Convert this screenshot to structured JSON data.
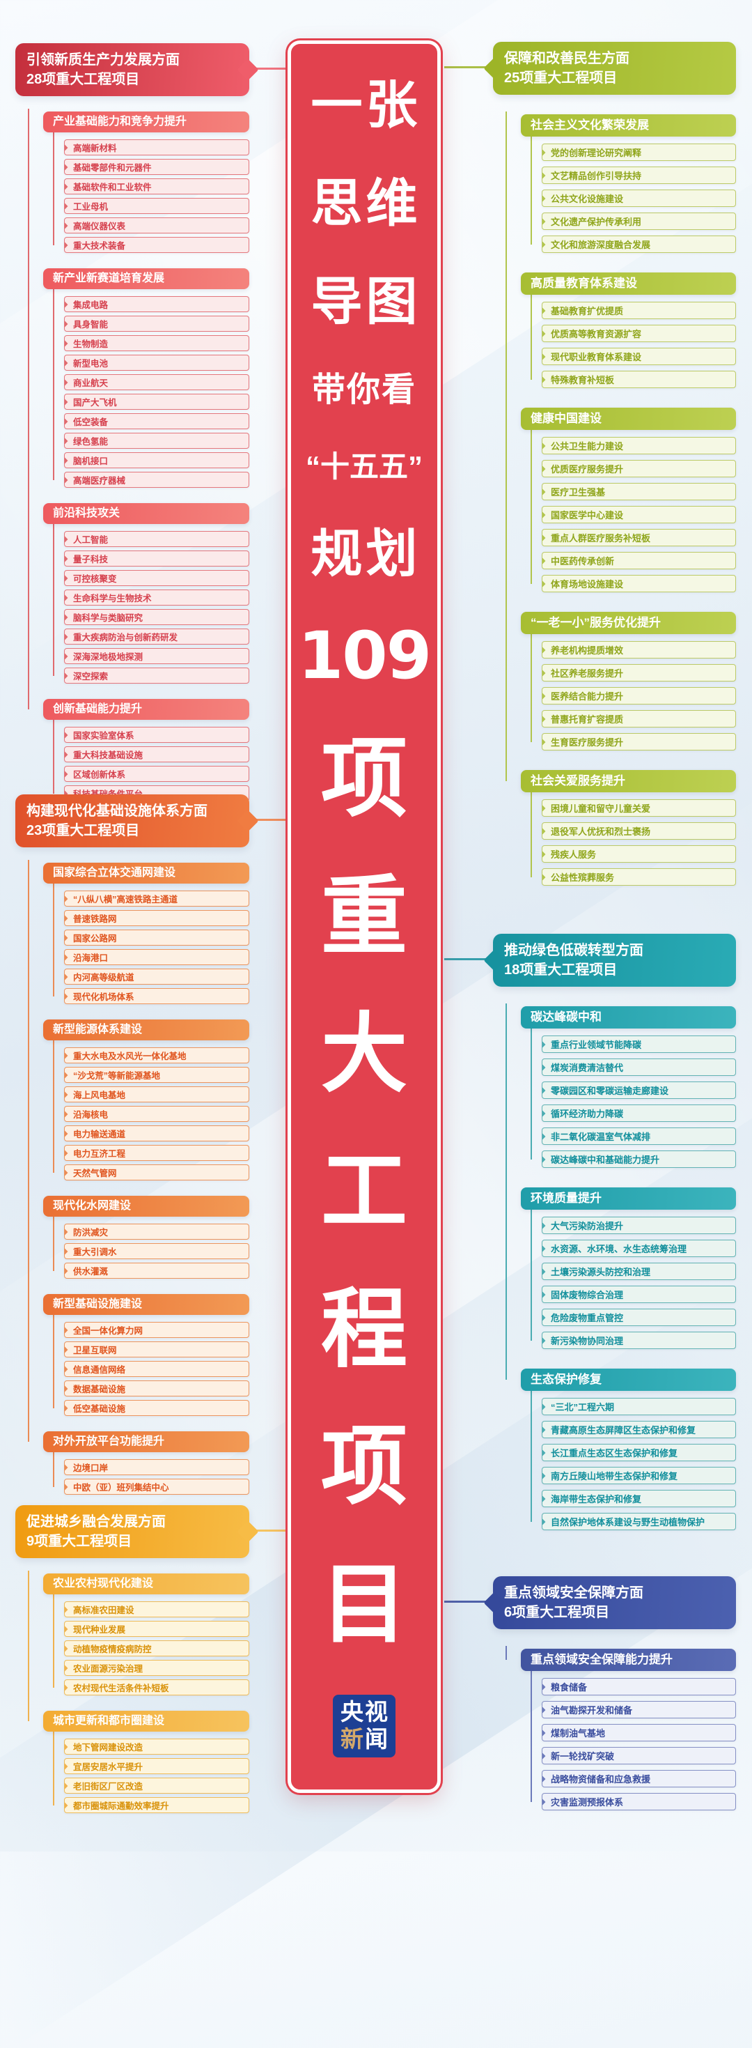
{
  "banner": {
    "pair_rows": [
      "一张",
      "思维",
      "导图"
    ],
    "sub_row": "带你看",
    "quote_row": "“十五五”",
    "plan_row": "规划",
    "number": "109",
    "big_chars": [
      "项",
      "重",
      "大",
      "工",
      "程",
      "项",
      "目"
    ],
    "bg_color": "#e2414e",
    "logo": {
      "top": "央视",
      "bottom_first": "新",
      "bottom_rest": "闻",
      "bg_color": "#1d3f94",
      "gold_color": "#d3a86b"
    }
  },
  "sections": [
    {
      "side": "left",
      "theme": "red",
      "header_line1": "引领新质生产力发展方面",
      "header_line2": "28项重大工程项目",
      "colors": {
        "hd1": "#c42f3c",
        "hd2": "#ef5d6a",
        "bh1": "#ee5a5e",
        "bh2": "#f4837d",
        "line": "#e06a6e",
        "leafbg": "#fbeaea",
        "leafbd": "#e4777d",
        "leaftx": "#d6414e"
      },
      "branches": [
        {
          "label": "产业基础能力和竞争力提升",
          "items": [
            "高端新材料",
            "基础零部件和元器件",
            "基础软件和工业软件",
            "工业母机",
            "高端仪器仪表",
            "重大技术装备"
          ]
        },
        {
          "label": "新产业新赛道培育发展",
          "items": [
            "集成电路",
            "具身智能",
            "生物制造",
            "新型电池",
            "商业航天",
            "国产大飞机",
            "低空装备",
            "绿色氢能",
            "脑机接口",
            "高端医疗器械"
          ]
        },
        {
          "label": "前沿科技攻关",
          "items": [
            "人工智能",
            "量子科技",
            "可控核聚变",
            "生命科学与生物技术",
            "脑科学与类脑研究",
            "重大疾病防治与创新药研发",
            "深海深地极地探测",
            "深空探索"
          ]
        },
        {
          "label": "创新基础能力提升",
          "items": [
            "国家实验室体系",
            "重大科技基础设施",
            "区域创新体系",
            "科技基础条件平台"
          ]
        }
      ]
    },
    {
      "side": "left",
      "theme": "orange",
      "header_line1": "构建现代化基础设施体系方面",
      "header_line2": "23项重大工程项目",
      "colors": {
        "hd1": "#e0512a",
        "hd2": "#f07c41",
        "bh1": "#ea6f33",
        "bh2": "#f29a55",
        "line": "#eb8b55",
        "leafbg": "#fdf0e3",
        "leafbd": "#ec955e",
        "leaftx": "#e0551f"
      },
      "branches": [
        {
          "label": "国家综合立体交通网建设",
          "items": [
            "“八纵八横”高速铁路主通道",
            "普速铁路网",
            "国家公路网",
            "沿海港口",
            "内河高等级航道",
            "现代化机场体系"
          ]
        },
        {
          "label": "新型能源体系建设",
          "items": [
            "重大水电及水风光一体化基地",
            "“沙戈荒”等新能源基地",
            "海上风电基地",
            "沿海核电",
            "电力输送通道",
            "电力互济工程",
            "天然气管网"
          ]
        },
        {
          "label": "现代化水网建设",
          "items": [
            "防洪减灾",
            "重大引调水",
            "供水灌溉"
          ]
        },
        {
          "label": "新型基础设施建设",
          "items": [
            "全国一体化算力网",
            "卫星互联网",
            "信息通信网络",
            "数据基础设施",
            "低空基础设施"
          ]
        },
        {
          "label": "对外开放平台功能提升",
          "items": [
            "边境口岸",
            "中欧（亚）班列集结中心"
          ]
        }
      ]
    },
    {
      "side": "left",
      "theme": "amber",
      "header_line1": "促进城乡融合发展方面",
      "header_line2": "9项重大工程项目",
      "colors": {
        "hd1": "#f09b11",
        "hd2": "#f7bc46",
        "bh1": "#f3ab33",
        "bh2": "#f6c35e",
        "line": "#f0b24f",
        "leafbg": "#fdf5dd",
        "leafbd": "#eebb59",
        "leaftx": "#d9920a"
      },
      "branches": [
        {
          "label": "农业农村现代化建设",
          "items": [
            "高标准农田建设",
            "现代种业发展",
            "动植物疫情疫病防控",
            "农业面源污染治理",
            "农村现代生活条件补短板"
          ]
        },
        {
          "label": "城市更新和都市圈建设",
          "items": [
            "地下管网建设改造",
            "宜居安居水平提升",
            "老旧街区厂区改造",
            "都市圈城际通勤效率提升"
          ]
        }
      ]
    },
    {
      "side": "right",
      "theme": "olive",
      "header_line1": "保障和改善民生方面",
      "header_line2": "25项重大工程项目",
      "colors": {
        "hd1": "#9db427",
        "hd2": "#b5ca44",
        "bh1": "#a7bd32",
        "bh2": "#bdd052",
        "line": "#b1c54c",
        "leafbg": "#f5f8e4",
        "leafbd": "#bcca67",
        "leaftx": "#90a61c"
      },
      "branches": [
        {
          "label": "社会主义文化繁荣发展",
          "items": [
            "党的创新理论研究阐释",
            "文艺精品创作引导扶持",
            "公共文化设施建设",
            "文化遗产保护传承利用",
            "文化和旅游深度融合发展"
          ]
        },
        {
          "label": "高质量教育体系建设",
          "items": [
            "基础教育扩优提质",
            "优质高等教育资源扩容",
            "现代职业教育体系建设",
            "特殊教育补短板"
          ]
        },
        {
          "label": "健康中国建设",
          "items": [
            "公共卫生能力建设",
            "优质医疗服务提升",
            "医疗卫生强基",
            "国家医学中心建设",
            "重点人群医疗服务补短板",
            "中医药传承创新",
            "体育场地设施建设"
          ]
        },
        {
          "label": "“一老一小”服务优化提升",
          "items": [
            "养老机构提质增效",
            "社区养老服务提升",
            "医养结合能力提升",
            "普惠托育扩容提质",
            "生育医疗服务提升"
          ]
        },
        {
          "label": "社会关爱服务提升",
          "items": [
            "困境儿童和留守儿童关爱",
            "退役军人优抚和烈士褒扬",
            "残疾人服务",
            "公益性殡葬服务"
          ]
        }
      ]
    },
    {
      "side": "right",
      "theme": "teal",
      "header_line1": "推动绿色低碳转型方面",
      "header_line2": "18项重大工程项目",
      "colors": {
        "hd1": "#17929f",
        "hd2": "#2aabb5",
        "bh1": "#1f9da9",
        "bh2": "#3cb4bd",
        "line": "#4aacb2",
        "leafbg": "#eaf4f0",
        "leafbd": "#62b3b4",
        "leaftx": "#128f9c"
      },
      "branches": [
        {
          "label": "碳达峰碳中和",
          "items": [
            "重点行业领域节能降碳",
            "煤炭消费清洁替代",
            "零碳园区和零碳运输走廊建设",
            "循环经济助力降碳",
            "非二氧化碳温室气体减排",
            "碳达峰碳中和基础能力提升"
          ]
        },
        {
          "label": "环境质量提升",
          "items": [
            "大气污染防治提升",
            "水资源、水环境、水生态统筹治理",
            "土壤污染源头防控和治理",
            "固体废物综合治理",
            "危险废物重点管控",
            "新污染物协同治理"
          ]
        },
        {
          "label": "生态保护修复",
          "items": [
            "“三北”工程六期",
            "青藏高原生态屏障区生态保护和修复",
            "长江重点生态区生态保护和修复",
            "南方丘陵山地带生态保护和修复",
            "海岸带生态保护和修复",
            "自然保护地体系建设与野生动植物保护"
          ]
        }
      ]
    },
    {
      "side": "right",
      "theme": "blue",
      "header_line1": "重点领域安全保障方面",
      "header_line2": "6项重大工程项目",
      "colors": {
        "hd1": "#35499b",
        "hd2": "#4c61b0",
        "bh1": "#41549f",
        "bh2": "#5a6cb5",
        "line": "#6b7aba",
        "leafbg": "#eef1f9",
        "leafbd": "#8590c5",
        "leaftx": "#3a4d9e"
      },
      "branches": [
        {
          "label": "重点领域安全保障能力提升",
          "items": [
            "粮食储备",
            "油气勘探开发和储备",
            "煤制油气基地",
            "新一轮找矿突破",
            "战略物资储备和应急救援",
            "灾害监测预报体系"
          ]
        }
      ]
    }
  ]
}
